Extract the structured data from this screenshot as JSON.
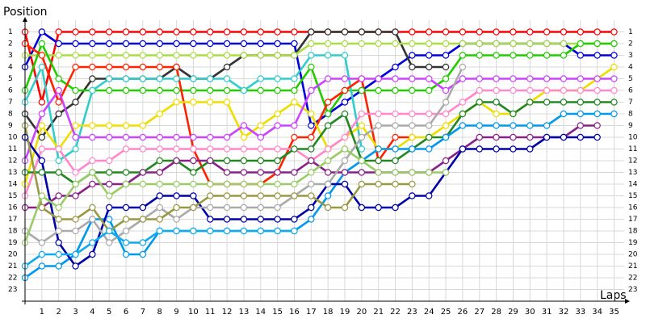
{
  "chart_data": {
    "type": "line",
    "y_label": "Position",
    "x_label": "Laps",
    "x": [
      0,
      1,
      2,
      3,
      4,
      5,
      6,
      7,
      8,
      9,
      10,
      11,
      12,
      13,
      14,
      15,
      16,
      17,
      18,
      19,
      20,
      21,
      22,
      23,
      24,
      25,
      26,
      27,
      28,
      29,
      30,
      31,
      32,
      33,
      34,
      35
    ],
    "xlim": [
      0,
      35.6
    ],
    "xticks": [
      1,
      2,
      3,
      4,
      5,
      6,
      7,
      8,
      9,
      10,
      11,
      12,
      13,
      14,
      15,
      16,
      17,
      18,
      19,
      20,
      21,
      22,
      23,
      24,
      25,
      26,
      27,
      28,
      29,
      30,
      31,
      32,
      33,
      34,
      35
    ],
    "ylim": [
      24,
      0
    ],
    "yticks": [
      1,
      2,
      3,
      4,
      5,
      6,
      7,
      8,
      9,
      10,
      11,
      12,
      13,
      14,
      15,
      16,
      17,
      18,
      19,
      20,
      21,
      22,
      23
    ],
    "grid": true,
    "series": [
      {
        "color": "#ff0000",
        "values": [
          1,
          7,
          1,
          1,
          1,
          1,
          1,
          1,
          1,
          1,
          1,
          1,
          1,
          1,
          1,
          1,
          1,
          1,
          1,
          1,
          1,
          1,
          1,
          1,
          1,
          1,
          1,
          1,
          1,
          1,
          1,
          1,
          1,
          1,
          1,
          1
        ]
      },
      {
        "color": "#0000dd",
        "values": [
          4,
          1,
          2,
          2,
          2,
          2,
          2,
          2,
          2,
          2,
          2,
          2,
          2,
          2,
          2,
          2,
          2,
          9,
          8,
          7,
          6,
          5,
          4,
          3,
          3,
          3,
          2,
          2,
          2,
          2,
          2,
          2,
          2,
          3,
          3,
          3
        ]
      },
      {
        "color": "#333333",
        "values": [
          8,
          10,
          8,
          7,
          5,
          5,
          5,
          5,
          5,
          4,
          5,
          5,
          4,
          3,
          3,
          3,
          3,
          1,
          1,
          1,
          1,
          1,
          1,
          4,
          4,
          4,
          null,
          null,
          null,
          null,
          null,
          null,
          null,
          null,
          null,
          null
        ]
      },
      {
        "color": "#aadd44",
        "values": [
          3,
          3,
          3,
          3,
          3,
          3,
          3,
          3,
          3,
          3,
          3,
          3,
          3,
          3,
          3,
          3,
          3,
          2,
          2,
          2,
          2,
          2,
          2,
          2,
          2,
          2,
          2,
          2,
          2,
          2,
          2,
          2,
          2,
          2,
          2,
          2
        ]
      },
      {
        "color": "#22cc00",
        "values": [
          6,
          2,
          5,
          6,
          6,
          6,
          6,
          6,
          6,
          6,
          6,
          6,
          6,
          6,
          6,
          6,
          6,
          4,
          8,
          6,
          6,
          6,
          6,
          6,
          6,
          5,
          3,
          3,
          3,
          3,
          3,
          3,
          3,
          2,
          2,
          2
        ]
      },
      {
        "color": "#33cccc",
        "values": [
          7,
          4,
          12,
          11,
          6,
          5,
          5,
          5,
          5,
          5,
          5,
          5,
          5,
          6,
          5,
          5,
          5,
          3,
          3,
          3,
          11,
          null,
          null,
          null,
          null,
          null,
          null,
          null,
          null,
          null,
          null,
          null,
          null,
          null,
          null,
          null
        ]
      },
      {
        "color": "#ff2200",
        "values": [
          2,
          3,
          7,
          4,
          4,
          4,
          4,
          4,
          4,
          4,
          11,
          14,
          14,
          14,
          14,
          13,
          10,
          10,
          7,
          6,
          5,
          12,
          10,
          10,
          null,
          null,
          null,
          null,
          null,
          null,
          null,
          null,
          null,
          null,
          null,
          null
        ]
      },
      {
        "color": "#eedd00",
        "values": [
          14,
          9,
          11,
          9,
          9,
          9,
          9,
          9,
          8,
          7,
          7,
          7,
          7,
          10,
          9,
          8,
          7,
          8,
          11,
          10,
          9,
          11,
          11,
          10,
          10,
          9,
          8,
          7,
          8,
          8,
          7,
          6,
          6,
          6,
          5,
          4
        ]
      },
      {
        "color": "#cc44ff",
        "values": [
          12,
          8,
          6,
          10,
          10,
          10,
          10,
          10,
          10,
          10,
          10,
          10,
          10,
          9,
          10,
          9,
          9,
          6,
          5,
          5,
          5,
          5,
          5,
          5,
          5,
          6,
          5,
          5,
          5,
          5,
          5,
          5,
          5,
          5,
          5,
          5
        ]
      },
      {
        "color": "#ff88cc",
        "values": [
          15,
          11,
          11,
          13,
          12,
          12,
          11,
          11,
          11,
          11,
          11,
          11,
          11,
          11,
          11,
          11,
          11,
          12,
          11,
          10,
          8,
          8,
          8,
          8,
          8,
          8,
          7,
          6,
          6,
          6,
          6,
          6,
          6,
          6,
          6,
          6
        ]
      },
      {
        "color": "#228822",
        "values": [
          13,
          13,
          13,
          14,
          13,
          13,
          13,
          13,
          12,
          12,
          13,
          12,
          12,
          12,
          12,
          12,
          11,
          11,
          9,
          8,
          12,
          12,
          12,
          11,
          10,
          10,
          8,
          7,
          7,
          8,
          7,
          7,
          7,
          7,
          7,
          7
        ]
      },
      {
        "color": "#0099ee",
        "values": [
          22,
          21,
          21,
          20,
          17,
          17,
          20,
          20,
          18,
          18,
          18,
          18,
          18,
          18,
          18,
          18,
          18,
          17,
          15,
          13,
          12,
          11,
          11,
          11,
          11,
          10,
          9,
          9,
          9,
          9,
          9,
          9,
          8,
          8,
          8,
          8
        ]
      },
      {
        "color": "#882288",
        "values": [
          16,
          16,
          15,
          15,
          14,
          14,
          14,
          13,
          13,
          12,
          12,
          12,
          13,
          13,
          13,
          13,
          13,
          12,
          13,
          13,
          13,
          13,
          13,
          13,
          13,
          12,
          11,
          10,
          10,
          10,
          10,
          10,
          10,
          9,
          9,
          null
        ]
      },
      {
        "color": "#0000aa",
        "values": [
          10,
          12,
          19,
          21,
          20,
          16,
          16,
          16,
          15,
          15,
          15,
          17,
          17,
          17,
          17,
          17,
          17,
          16,
          14,
          14,
          16,
          16,
          16,
          15,
          15,
          13,
          11,
          11,
          11,
          11,
          11,
          10,
          10,
          10,
          10,
          null
        ]
      },
      {
        "color": "#aaaaaa",
        "values": [
          18,
          19,
          18,
          18,
          17,
          19,
          18,
          17,
          16,
          17,
          16,
          16,
          16,
          16,
          16,
          16,
          15,
          14,
          14,
          12,
          10,
          9,
          9,
          9,
          9,
          7,
          4,
          null,
          null,
          null,
          null,
          null,
          null,
          null,
          null,
          null
        ]
      },
      {
        "color": "#999944",
        "values": [
          9,
          16,
          17,
          17,
          16,
          18,
          17,
          17,
          17,
          16,
          16,
          15,
          15,
          15,
          15,
          15,
          15,
          15,
          16,
          16,
          14,
          14,
          14,
          14,
          null,
          null,
          null,
          null,
          null,
          null,
          null,
          null,
          null,
          null,
          null,
          null
        ]
      },
      {
        "color": "#99cc66",
        "values": [
          19,
          15,
          16,
          14,
          13,
          15,
          14,
          14,
          14,
          14,
          14,
          14,
          14,
          14,
          14,
          14,
          14,
          13,
          12,
          11,
          12,
          13,
          13,
          13,
          13,
          13,
          null,
          null,
          null,
          null,
          null,
          null,
          null,
          null,
          null,
          null
        ]
      },
      {
        "color": "#11aaee",
        "values": [
          21,
          20,
          20,
          20,
          19,
          18,
          19,
          19,
          18,
          18,
          18,
          18,
          18,
          18,
          18,
          18,
          18,
          null,
          null,
          null,
          null,
          null,
          null,
          null,
          null,
          null,
          null,
          null,
          null,
          null,
          null,
          null,
          null,
          null,
          null,
          null
        ]
      }
    ]
  }
}
